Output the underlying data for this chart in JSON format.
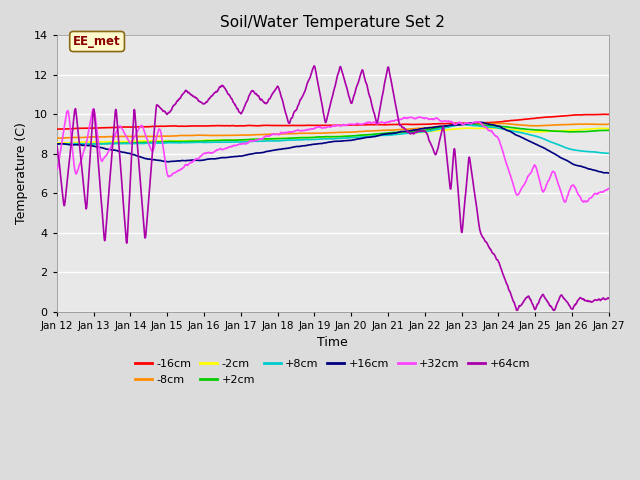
{
  "title": "Soil/Water Temperature Set 2",
  "xlabel": "Time",
  "ylabel": "Temperature (C)",
  "ylim": [
    0,
    14
  ],
  "yticks": [
    0,
    2,
    4,
    6,
    8,
    10,
    12,
    14
  ],
  "annotation_text": "EE_met",
  "annotation_color": "#8B0000",
  "annotation_bg": "#FFFACD",
  "annotation_border": "#8B6914",
  "series_colors": {
    "-16cm": "#FF0000",
    "-8cm": "#FF8C00",
    "-2cm": "#FFFF00",
    "+2cm": "#00CC00",
    "+8cm": "#00CCCC",
    "+16cm": "#000080",
    "+32cm": "#FF44FF",
    "+64cm": "#AA00AA"
  },
  "xtick_labels": [
    "Jan 12",
    "Jan 13",
    "Jan 14",
    "Jan 15",
    "Jan 16",
    "Jan 17",
    "Jan 18",
    "Jan 19",
    "Jan 20",
    "Jan 21",
    "Jan 22",
    "Jan 23",
    "Jan 24",
    "Jan 25",
    "Jan 26",
    "Jan 27"
  ],
  "background_color": "#DCDCDC",
  "plot_bg": "#E8E8E8",
  "grid_color": "#FFFFFF"
}
